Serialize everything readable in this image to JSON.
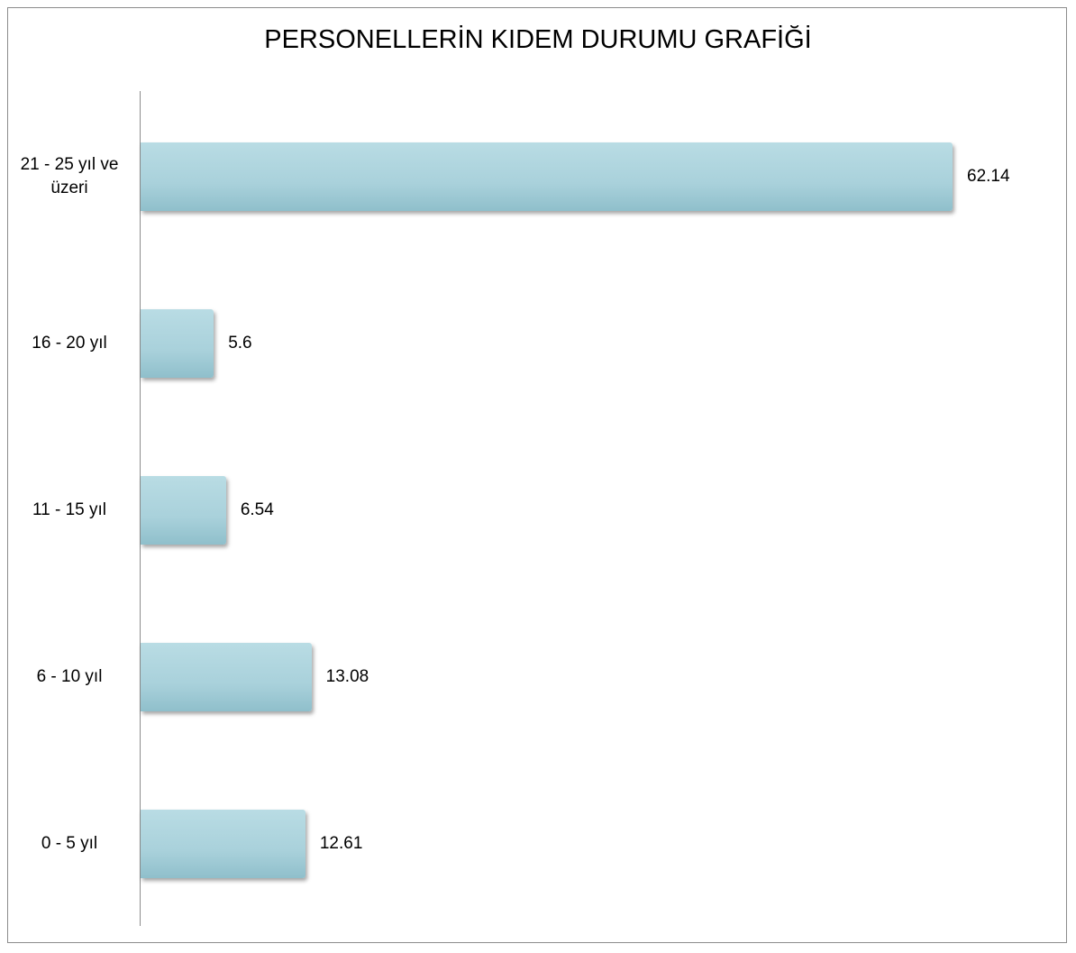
{
  "chart_data": {
    "type": "bar",
    "orientation": "horizontal",
    "title": "PERSONELLERİN KIDEM DURUMU GRAFİĞİ",
    "categories": [
      "21 - 25 yıl ve üzeri",
      "16 - 20 yıl",
      "11 - 15 yıl",
      "6 - 10 yıl",
      "0 - 5 yıl"
    ],
    "values": [
      62.14,
      5.6,
      6.54,
      13.08,
      12.61
    ],
    "color": "#a9d1db",
    "xlim": [
      0,
      70
    ]
  }
}
